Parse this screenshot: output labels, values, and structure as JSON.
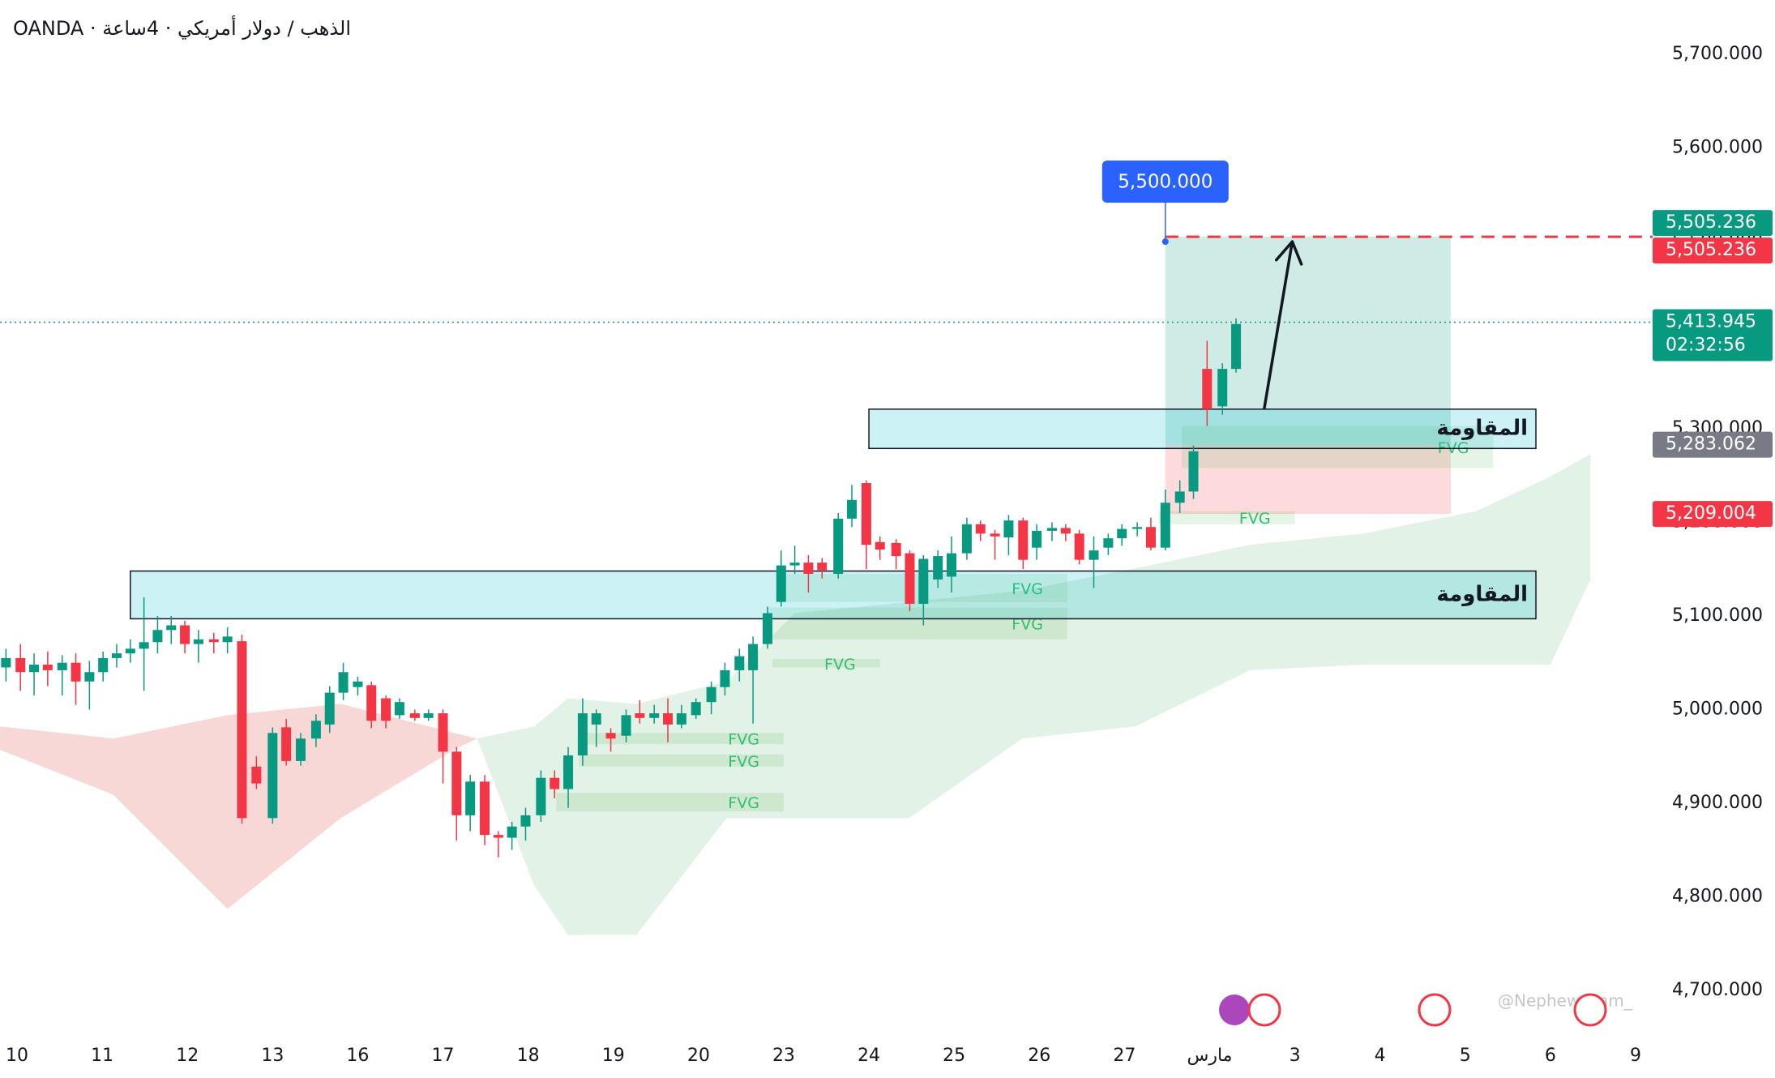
{
  "chart_data": {
    "type": "candlestick",
    "title": "OANDA · الذهب / دولار أمريكي · 4ساعة",
    "watermark": "@Nephew_Sam_",
    "up_color": "#089981",
    "down_color": "#f23645",
    "xlim": [
      -0.2,
      19.2
    ],
    "ylim": [
      4650,
      5750
    ],
    "xticks": [
      {
        "value": 0,
        "label": "10"
      },
      {
        "value": 1,
        "label": "11"
      },
      {
        "value": 2,
        "label": "12"
      },
      {
        "value": 3,
        "label": "13"
      },
      {
        "value": 4,
        "label": "16"
      },
      {
        "value": 5,
        "label": "17"
      },
      {
        "value": 6,
        "label": "18"
      },
      {
        "value": 7,
        "label": "19"
      },
      {
        "value": 8,
        "label": "20"
      },
      {
        "value": 9,
        "label": "23"
      },
      {
        "value": 10,
        "label": "24"
      },
      {
        "value": 11,
        "label": "25"
      },
      {
        "value": 12,
        "label": "26"
      },
      {
        "value": 13,
        "label": "27"
      },
      {
        "value": 14,
        "label": "مارس"
      },
      {
        "value": 15,
        "label": "3"
      },
      {
        "value": 16,
        "label": "4"
      },
      {
        "value": 17,
        "label": "5"
      },
      {
        "value": 18,
        "label": "6"
      },
      {
        "value": 19,
        "label": "9"
      }
    ],
    "yticks": [
      {
        "value": 4700,
        "label": "4,700.000"
      },
      {
        "value": 4800,
        "label": "4,800.000"
      },
      {
        "value": 4900,
        "label": "4,900.000"
      },
      {
        "value": 5000,
        "label": "5,000.000"
      },
      {
        "value": 5100,
        "label": "5,100.000"
      },
      {
        "value": 5200,
        "label": "5,200.000"
      },
      {
        "value": 5300,
        "label": "5,300.000"
      },
      {
        "value": 5400,
        "label": "5,400.000"
      },
      {
        "value": 5500,
        "label": "5,500.000"
      },
      {
        "value": 5600,
        "label": "5,600.000"
      },
      {
        "value": 5700,
        "label": "5,700.000"
      }
    ],
    "x": [
      -0.13,
      0.04,
      0.2,
      0.36,
      0.53,
      0.69,
      0.85,
      1.01,
      1.17,
      1.33,
      1.49,
      1.65,
      1.81,
      1.97,
      2.13,
      2.31,
      2.47,
      2.64,
      2.81,
      3.0,
      3.16,
      3.33,
      3.51,
      3.67,
      3.83,
      4.0,
      4.16,
      4.33,
      4.49,
      4.67,
      4.83,
      5.0,
      5.16,
      5.32,
      5.49,
      5.65,
      5.81,
      5.97,
      6.15,
      6.31,
      6.47,
      6.64,
      6.8,
      6.97,
      7.15,
      7.31,
      7.48,
      7.64,
      7.8,
      7.97,
      8.15,
      8.31,
      8.48,
      8.64,
      8.81,
      8.97,
      9.13,
      9.29,
      9.45,
      9.64,
      9.8,
      9.97,
      10.13,
      10.32,
      10.48,
      10.64,
      10.81,
      10.97,
      11.15,
      11.31,
      11.48,
      11.64,
      11.81,
      11.97,
      12.15,
      12.31,
      12.47,
      12.64,
      12.81,
      12.97,
      13.15,
      13.31,
      13.48,
      13.65,
      13.81,
      13.97,
      14.15,
      14.31
    ],
    "open": [
      5045,
      5055,
      5040,
      5048,
      5042,
      5050,
      5030,
      5040,
      5055,
      5060,
      5065,
      5072,
      5085,
      5090,
      5070,
      5075,
      5072,
      5073,
      4939,
      4884,
      4981,
      4945,
      4969,
      4984,
      5018,
      5024,
      5026,
      5012,
      4994,
      4996,
      4991,
      4996,
      4955,
      4887,
      4923,
      4866,
      4863,
      4875,
      4887,
      4927,
      4915,
      4951,
      4984,
      4975,
      4972,
      4996,
      4991,
      4996,
      4984,
      4994,
      5008,
      5024,
      5042,
      5042,
      5070,
      5115,
      5154,
      5157,
      5157,
      5145,
      5204,
      5242,
      5179,
      5178,
      5167,
      5113,
      5139,
      5142,
      5167,
      5198,
      5188,
      5184,
      5202,
      5173,
      5191,
      5194,
      5188,
      5160,
      5173,
      5183,
      5193,
      5195,
      5173,
      5221,
      5233,
      5364,
      5324,
      5364
    ],
    "high": [
      5065,
      5070,
      5060,
      5062,
      5058,
      5060,
      5052,
      5062,
      5070,
      5075,
      5120,
      5100,
      5100,
      5095,
      5085,
      5082,
      5088,
      5080,
      4950,
      4981,
      4990,
      4975,
      4995,
      5025,
      5050,
      5035,
      5030,
      5015,
      5012,
      5000,
      5000,
      5000,
      4960,
      4930,
      4930,
      4870,
      4880,
      4895,
      4935,
      4935,
      4960,
      5012,
      5000,
      4980,
      5000,
      5010,
      5005,
      5012,
      5005,
      5012,
      5030,
      5050,
      5065,
      5078,
      5110,
      5170,
      5175,
      5165,
      5162,
      5210,
      5240,
      5245,
      5185,
      5182,
      5170,
      5165,
      5170,
      5185,
      5205,
      5202,
      5192,
      5208,
      5205,
      5198,
      5200,
      5198,
      5192,
      5185,
      5188,
      5198,
      5200,
      5205,
      5235,
      5245,
      5282,
      5394,
      5370,
      5418
    ],
    "low": [
      5030,
      5020,
      5015,
      5025,
      5015,
      5005,
      5000,
      5030,
      5045,
      5050,
      5020,
      5060,
      5070,
      5060,
      5050,
      5060,
      5060,
      4878,
      4915,
      4878,
      4940,
      4940,
      4960,
      4975,
      5010,
      5015,
      4980,
      4980,
      4990,
      4988,
      4988,
      4921,
      4860,
      4870,
      4855,
      4842,
      4850,
      4860,
      4880,
      4905,
      4895,
      4940,
      4960,
      4955,
      4965,
      4985,
      4985,
      4965,
      4980,
      4990,
      4995,
      5015,
      5030,
      4985,
      5065,
      5110,
      5145,
      5125,
      5140,
      5140,
      5195,
      5150,
      5160,
      5150,
      5105,
      5090,
      5130,
      5125,
      5160,
      5180,
      5160,
      5165,
      5150,
      5160,
      5180,
      5180,
      5155,
      5130,
      5165,
      5175,
      5185,
      5170,
      5170,
      5210,
      5225,
      5303,
      5315,
      5360
    ],
    "close": [
      5055,
      5040,
      5048,
      5042,
      5050,
      5030,
      5040,
      5055,
      5060,
      5065,
      5072,
      5085,
      5090,
      5070,
      5075,
      5072,
      5078,
      4884,
      4921,
      4975,
      4945,
      4969,
      4988,
      5018,
      5040,
      5030,
      4988,
      4988,
      5008,
      4991,
      4996,
      4955,
      4887,
      4923,
      4866,
      4863,
      4875,
      4887,
      4927,
      4915,
      4951,
      4996,
      4996,
      4969,
      4994,
      4991,
      4996,
      4984,
      4996,
      5008,
      5024,
      5042,
      5057,
      5070,
      5103,
      5154,
      5157,
      5145,
      5149,
      5204,
      5224,
      5176,
      5171,
      5164,
      5113,
      5161,
      5164,
      5167,
      5198,
      5188,
      5185,
      5202,
      5160,
      5191,
      5194,
      5188,
      5160,
      5170,
      5183,
      5193,
      5195,
      5173,
      5221,
      5233,
      5276,
      5321,
      5364,
      5412
    ],
    "clouds": [
      {
        "color": "#f8d7d7",
        "x": [
          -0.2,
          1.13,
          2.47,
          3.8,
          5.13,
          5.4
        ],
        "upper": [
          4982,
          4969,
          4994,
          5006,
          4975,
          4969
        ],
        "lower": [
          4957,
          4909,
          4787,
          4884,
          4957,
          4969
        ]
      },
      {
        "color": "#e3f2e6",
        "x": [
          5.4,
          6.07,
          6.47,
          7.27,
          8.33,
          9.13,
          10.47,
          11.8,
          13.13,
          14.47,
          15.8,
          17.13,
          18.0,
          18.47
        ],
        "upper": [
          4969,
          4982,
          5012,
          5006,
          5030,
          5103,
          5115,
          5127,
          5151,
          5176,
          5188,
          5212,
          5249,
          5273
        ],
        "lower": [
          4969,
          4812,
          4759,
          4759,
          4884,
          4884,
          4884,
          4969,
          4982,
          5042,
          5048,
          5048,
          5048,
          5139
        ]
      }
    ],
    "fvgs": [
      {
        "label": "FVG",
        "x0": 13.4,
        "x1": 15.0,
        "low": 5198,
        "high": 5212
      },
      {
        "label": "FVG",
        "x0": 13.67,
        "x1": 17.33,
        "low": 5258,
        "high": 5303
      },
      {
        "label": "FVG",
        "x0": 9.0,
        "x1": 12.33,
        "low": 5115,
        "high": 5145
      },
      {
        "label": "FVG",
        "x0": 8.8,
        "x1": 12.33,
        "low": 5075,
        "high": 5109
      },
      {
        "label": "FVG",
        "x0": 8.87,
        "x1": 10.13,
        "low": 5045,
        "high": 5054
      },
      {
        "label": "FVG",
        "x0": 6.6,
        "x1": 9.0,
        "low": 4963,
        "high": 4975
      },
      {
        "label": "FVG",
        "x0": 6.6,
        "x1": 9.0,
        "low": 4939,
        "high": 4952
      },
      {
        "label": "FVG",
        "x0": 6.33,
        "x1": 9.0,
        "low": 4891,
        "high": 4911
      }
    ],
    "zones": [
      {
        "label": "المقاومة",
        "x0": 10.0,
        "x1": 17.83,
        "low": 5279,
        "high": 5321
      },
      {
        "label": "المقاومة",
        "x0": 1.33,
        "x1": 17.83,
        "low": 5097,
        "high": 5148
      }
    ],
    "position": {
      "x0": 13.48,
      "x1": 16.83,
      "target": 5505.236,
      "entry": 5283.062,
      "stop": 5209.004
    },
    "target_label": {
      "value": 5500,
      "label": "5,500.000",
      "x": 13.48
    },
    "arrow": {
      "from": [
        14.64,
        5321
      ],
      "to": [
        14.97,
        5500
      ]
    },
    "current_price": 5413.945,
    "price_tags": [
      {
        "value": 5505.236,
        "label": "5,505.236",
        "color": "#089981",
        "offset": -1
      },
      {
        "value": 5505.236,
        "label": "5,505.236",
        "color": "#f23645",
        "offset": 1
      },
      {
        "value": 5413.945,
        "label": "5,413.945",
        "sub": "02:32:56",
        "color": "#089981",
        "offset": 0
      },
      {
        "value": 5283.062,
        "label": "5,283.062",
        "color": "#787b86",
        "offset": 0
      },
      {
        "value": 5209.004,
        "label": "5,209.004",
        "color": "#f23645",
        "offset": 0
      }
    ]
  }
}
